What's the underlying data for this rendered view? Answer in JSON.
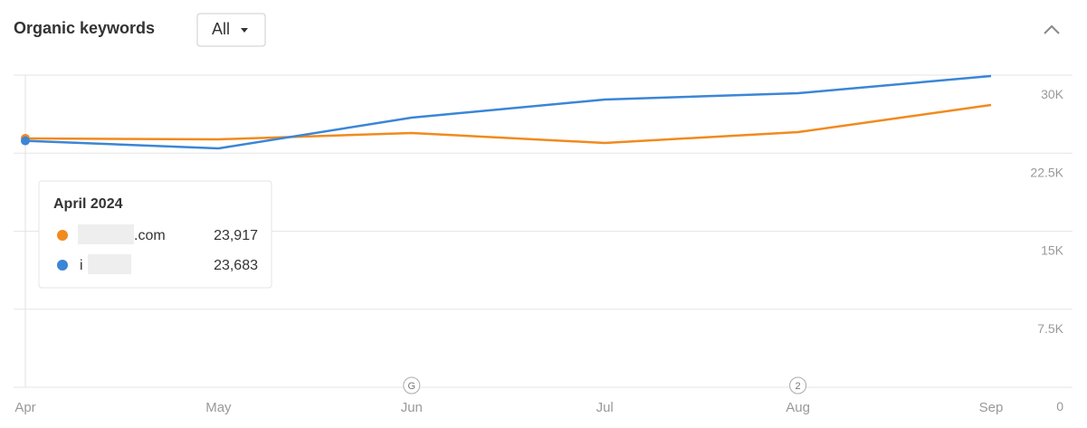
{
  "header": {
    "title": "Organic keywords",
    "filter": "All"
  },
  "chart_data": {
    "type": "line",
    "categories": [
      "Apr",
      "May",
      "Jun",
      "Jul",
      "Aug",
      "Sep"
    ],
    "series": [
      {
        "name": ".com",
        "color": "#f28a1e",
        "values": [
          23917,
          23826,
          24435,
          23478,
          24522,
          27130
        ],
        "value_labels": [
          "23,917",
          null,
          null,
          null,
          null,
          null
        ]
      },
      {
        "name": "i .com/",
        "color": "#3b86d6",
        "values": [
          23683,
          22957,
          25913,
          27652,
          28261,
          29913
        ],
        "value_labels": [
          "23,683",
          null,
          null,
          null,
          null,
          null
        ]
      }
    ],
    "ylim": [
      0,
      30000
    ],
    "yticks": [
      0,
      {
        "value": 7500,
        "label": "7.5K"
      },
      {
        "value": 15000,
        "label": "15K"
      },
      {
        "value": 22500,
        "label": "22.5K"
      },
      {
        "value": 30000,
        "label": "30K"
      }
    ],
    "grid": true,
    "tooltip": {
      "title": "April 2024"
    },
    "annotations": [
      {
        "x": "Jun",
        "label": "G"
      },
      {
        "x": "Aug",
        "label": "2"
      }
    ]
  }
}
